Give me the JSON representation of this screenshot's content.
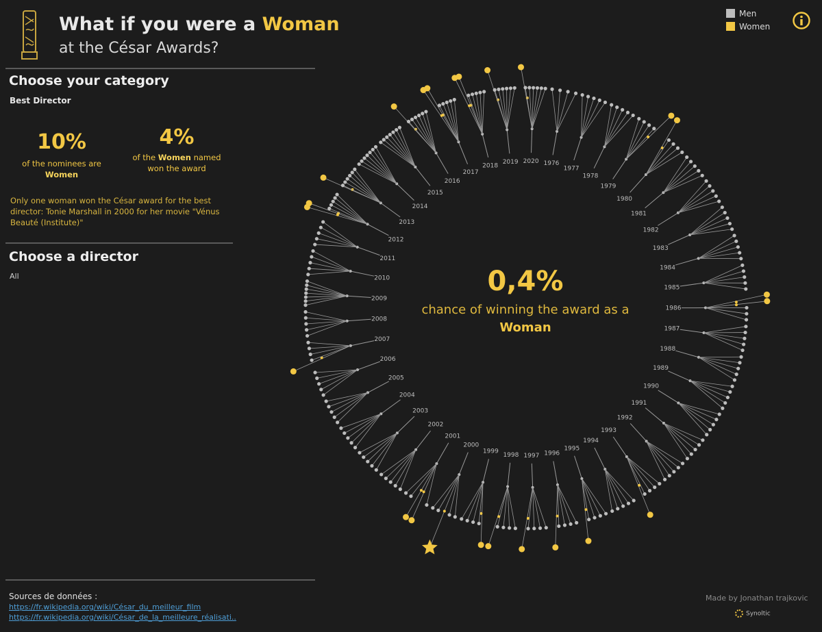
{
  "header": {
    "title_prefix": "What if you were a ",
    "title_accent": "Woman",
    "subtitle": "at the César Awards?"
  },
  "legend": [
    {
      "label": "Men",
      "color": "#bdbdbd"
    },
    {
      "label": "Women",
      "color": "#f2c744"
    }
  ],
  "icons": {
    "info": "info-icon",
    "trophy": "cesar-trophy-icon",
    "star": "star-icon"
  },
  "category": {
    "heading": "Choose your category",
    "selected": "Best Director"
  },
  "stats": {
    "nominees_pct": "10%",
    "nominees_caption_pre": "of the nominees are ",
    "nominees_caption_bold": "Women",
    "won_pct": "4%",
    "won_caption_pre": "of the ",
    "won_caption_bold": "Women",
    "won_caption_post": " named won the award"
  },
  "info_text": "Only one woman won the César award for the best director: Tonie Marshall in 2000 for her movie \"Vénus Beauté (Institute)\"",
  "director": {
    "heading": "Choose a director",
    "selected": "All"
  },
  "center": {
    "value": "0,4%",
    "caption_pre": "chance of winning the award as a",
    "caption_bold": "Woman"
  },
  "sources": {
    "label": "Sources de données :",
    "links": [
      "https://fr.wikipedia.org/wiki/César_du_meilleur_film",
      "https://fr.wikipedia.org/wiki/César_de_la_meilleure_réalisati.."
    ]
  },
  "credit": "Made by Jonathan trajkovic",
  "brand": "Synoltic",
  "colors": {
    "men": "#bdbdbd",
    "women": "#f2c744",
    "background": "#1c1c1c",
    "line": "#9a9a9a"
  },
  "chart_data": {
    "type": "radial",
    "years": [
      {
        "year": 1976,
        "nominees": 4,
        "women": []
      },
      {
        "year": 1977,
        "nominees": 5,
        "women": []
      },
      {
        "year": 1978,
        "nominees": 5,
        "women": []
      },
      {
        "year": 1979,
        "nominees": 5,
        "women": [
          4
        ]
      },
      {
        "year": 1980,
        "nominees": 5,
        "women": [
          0
        ]
      },
      {
        "year": 1981,
        "nominees": 5,
        "women": []
      },
      {
        "year": 1982,
        "nominees": 5,
        "women": []
      },
      {
        "year": 1983,
        "nominees": 5,
        "women": []
      },
      {
        "year": 1984,
        "nominees": 5,
        "women": []
      },
      {
        "year": 1985,
        "nominees": 5,
        "women": []
      },
      {
        "year": 1986,
        "nominees": 5,
        "women": [
          0,
          1
        ]
      },
      {
        "year": 1987,
        "nominees": 5,
        "women": []
      },
      {
        "year": 1988,
        "nominees": 5,
        "women": []
      },
      {
        "year": 1989,
        "nominees": 5,
        "women": []
      },
      {
        "year": 1990,
        "nominees": 5,
        "women": []
      },
      {
        "year": 1991,
        "nominees": 5,
        "women": []
      },
      {
        "year": 1992,
        "nominees": 5,
        "women": []
      },
      {
        "year": 1993,
        "nominees": 5,
        "women": [
          4
        ]
      },
      {
        "year": 1994,
        "nominees": 5,
        "women": []
      },
      {
        "year": 1995,
        "nominees": 5,
        "women": [
          4
        ]
      },
      {
        "year": 1996,
        "nominees": 5,
        "women": [
          4
        ]
      },
      {
        "year": 1997,
        "nominees": 5,
        "women": [
          4
        ]
      },
      {
        "year": 1998,
        "nominees": 5,
        "women": [
          4
        ]
      },
      {
        "year": 1999,
        "nominees": 5,
        "women": [
          0
        ]
      },
      {
        "year": 2000,
        "nominees": 5,
        "women": [
          2
        ],
        "winner_woman": true
      },
      {
        "year": 2001,
        "nominees": 5,
        "women": [
          1,
          2
        ]
      },
      {
        "year": 2002,
        "nominees": 5,
        "women": []
      },
      {
        "year": 2003,
        "nominees": 5,
        "women": []
      },
      {
        "year": 2004,
        "nominees": 5,
        "women": []
      },
      {
        "year": 2005,
        "nominees": 5,
        "women": []
      },
      {
        "year": 2006,
        "nominees": 5,
        "women": []
      },
      {
        "year": 2007,
        "nominees": 5,
        "women": [
          0
        ]
      },
      {
        "year": 2008,
        "nominees": 5,
        "women": []
      },
      {
        "year": 2009,
        "nominees": 7,
        "women": []
      },
      {
        "year": 2010,
        "nominees": 5,
        "women": []
      },
      {
        "year": 2011,
        "nominees": 5,
        "women": []
      },
      {
        "year": 2012,
        "nominees": 7,
        "women": [
          0,
          1
        ]
      },
      {
        "year": 2013,
        "nominees": 7,
        "women": [
          0
        ]
      },
      {
        "year": 2014,
        "nominees": 7,
        "women": []
      },
      {
        "year": 2015,
        "nominees": 7,
        "women": []
      },
      {
        "year": 2016,
        "nominees": 7,
        "women": [
          0
        ]
      },
      {
        "year": 2017,
        "nominees": 7,
        "women": [
          0,
          1
        ]
      },
      {
        "year": 2018,
        "nominees": 7,
        "women": [
          0,
          1
        ]
      },
      {
        "year": 2019,
        "nominees": 7,
        "women": [
          0
        ]
      },
      {
        "year": 2020,
        "nominees": 7,
        "women": [
          0
        ]
      }
    ]
  }
}
